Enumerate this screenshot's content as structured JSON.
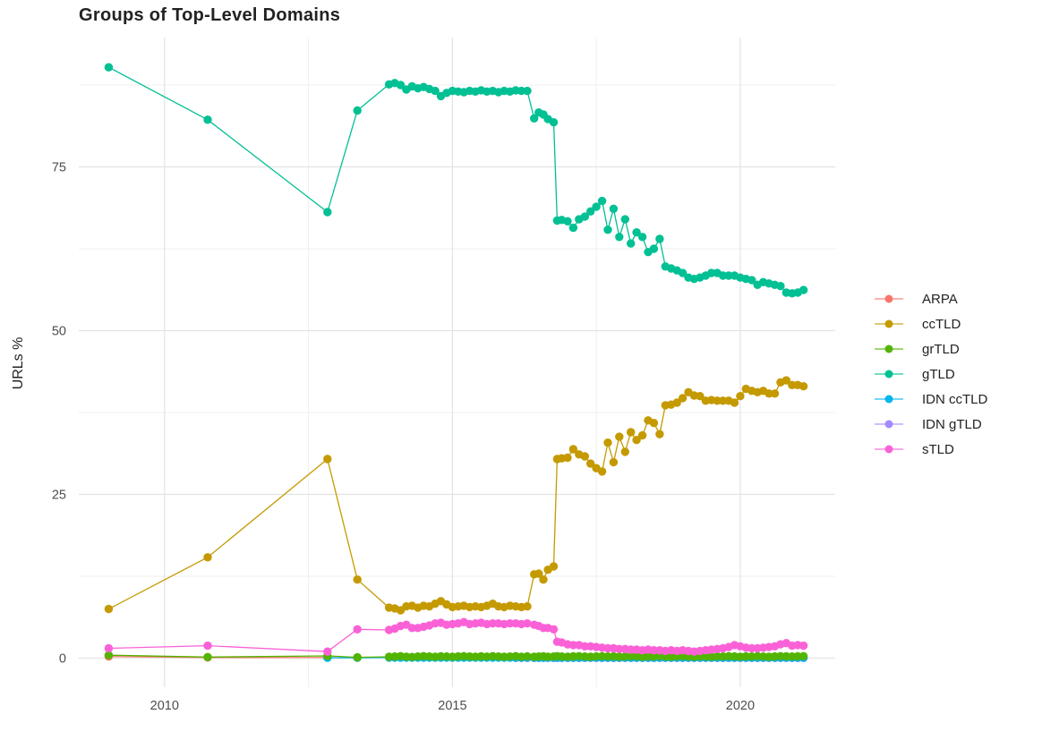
{
  "title": "Groups of Top-Level Domains",
  "y_axis": {
    "label": "URLs %"
  },
  "chart_data": {
    "type": "line",
    "title": "Groups of Top-Level Domains",
    "xlabel": "",
    "ylabel": "URLs %",
    "xlim": [
      2008.51,
      2021.65
    ],
    "ylim": [
      -4.44,
      94.74
    ],
    "x_ticks": [
      2010,
      2015,
      2020
    ],
    "x_tick_labels": [
      "2010",
      "2015",
      "2020"
    ],
    "y_ticks": [
      0,
      25,
      50,
      75
    ],
    "y_tick_labels": [
      "0",
      "25",
      "50",
      "75"
    ],
    "x_minor": [
      2012.5,
      2017.5
    ],
    "y_minor": [
      12.5,
      37.5,
      62.5,
      87.5
    ],
    "grid": {
      "major_color": "#e3e3e3",
      "minor_color": "#efefef"
    },
    "legend_position": "right",
    "draw_order": [
      "ARPA",
      "IDN gTLD",
      "IDN ccTLD",
      "gTLD",
      "ccTLD",
      "grTLD",
      "sTLD"
    ],
    "dense_x": [
      2013.9,
      2014.0,
      2014.1,
      2014.2,
      2014.3,
      2014.4,
      2014.5,
      2014.6,
      2014.7,
      2014.8,
      2014.9,
      2015.0,
      2015.1,
      2015.2,
      2015.3,
      2015.4,
      2015.5,
      2015.6,
      2015.7,
      2015.8,
      2015.9,
      2016.0,
      2016.1,
      2016.2,
      2016.3,
      2016.42,
      2016.5,
      2016.58,
      2016.66,
      2016.76,
      2016.82,
      2016.9,
      2017.0,
      2017.1,
      2017.2,
      2017.3,
      2017.4,
      2017.5,
      2017.6,
      2017.7,
      2017.8,
      2017.9,
      2018.0,
      2018.1,
      2018.2,
      2018.3,
      2018.4,
      2018.5,
      2018.6,
      2018.7,
      2018.8,
      2018.9,
      2019.0,
      2019.1,
      2019.2,
      2019.3,
      2019.4,
      2019.5,
      2019.6,
      2019.7,
      2019.8,
      2019.9,
      2020.0,
      2020.1,
      2020.2,
      2020.3,
      2020.4,
      2020.5,
      2020.6,
      2020.7,
      2020.8,
      2020.9,
      2021.0,
      2021.1
    ],
    "series": [
      {
        "name": "ARPA",
        "color": "#F8766D",
        "points": [
          [
            2009.03,
            0.25
          ],
          [
            2010.75,
            0.1
          ],
          [
            2012.83,
            0.08
          ],
          [
            2013.35,
            0.05
          ]
        ]
      },
      {
        "name": "ccTLD",
        "color": "#C49A00",
        "points": [
          [
            2009.03,
            7.5
          ],
          [
            2010.75,
            15.4
          ],
          [
            2012.83,
            30.4
          ],
          [
            2013.35,
            12.0
          ]
        ],
        "dense_values": [
          7.7,
          7.6,
          7.3,
          7.9,
          8.0,
          7.7,
          8.0,
          7.9,
          8.3,
          8.7,
          8.2,
          7.8,
          7.9,
          8.0,
          7.8,
          7.9,
          7.8,
          8.0,
          8.3,
          7.9,
          7.8,
          8.0,
          7.9,
          7.8,
          7.9,
          12.8,
          12.9,
          12.0,
          13.5,
          14.0,
          30.4,
          30.5,
          30.6,
          31.9,
          31.1,
          30.8,
          29.7,
          29.0,
          28.5,
          32.9,
          29.9,
          33.8,
          31.5,
          34.5,
          33.3,
          34.0,
          36.3,
          35.9,
          34.2,
          38.6,
          38.7,
          39.0,
          39.7,
          40.6,
          40.1,
          40.0,
          39.3,
          39.4,
          39.3,
          39.3,
          39.3,
          39.0,
          40.0,
          41.1,
          40.8,
          40.6,
          40.8,
          40.4,
          40.4,
          42.1,
          42.4,
          41.7,
          41.7,
          41.5
        ]
      },
      {
        "name": "grTLD",
        "color": "#53B400",
        "points": [
          [
            2009.03,
            0.45
          ],
          [
            2010.75,
            0.16
          ],
          [
            2012.83,
            0.34
          ],
          [
            2013.35,
            0.12
          ]
        ],
        "dense_values": [
          0.2,
          0.25,
          0.3,
          0.22,
          0.18,
          0.25,
          0.3,
          0.25,
          0.2,
          0.28,
          0.24,
          0.2,
          0.26,
          0.3,
          0.24,
          0.2,
          0.27,
          0.23,
          0.3,
          0.25,
          0.2,
          0.25,
          0.3,
          0.22,
          0.26,
          0.2,
          0.25,
          0.28,
          0.22,
          0.25,
          0.3,
          0.25,
          0.22,
          0.27,
          0.3,
          0.25,
          0.2,
          0.26,
          0.3,
          0.24,
          0.28,
          0.22,
          0.25,
          0.3,
          0.26,
          0.2,
          0.27,
          0.24,
          0.3,
          0.25,
          0.2,
          0.26,
          0.3,
          0.24,
          0.2,
          0.27,
          0.25,
          0.22,
          0.28,
          0.25,
          0.3,
          0.26,
          0.22,
          0.27,
          0.25,
          0.3,
          0.24,
          0.2,
          0.26,
          0.3,
          0.27,
          0.24,
          0.28,
          0.3
        ]
      },
      {
        "name": "gTLD",
        "color": "#00C094",
        "points": [
          [
            2009.03,
            90.2
          ],
          [
            2010.75,
            82.2
          ],
          [
            2012.83,
            68.1
          ],
          [
            2013.35,
            83.6
          ]
        ],
        "dense_values": [
          87.6,
          87.8,
          87.5,
          86.8,
          87.3,
          87.0,
          87.2,
          86.9,
          86.6,
          85.8,
          86.3,
          86.6,
          86.5,
          86.4,
          86.6,
          86.5,
          86.7,
          86.5,
          86.6,
          86.4,
          86.6,
          86.5,
          86.7,
          86.6,
          86.6,
          82.4,
          83.3,
          83.0,
          82.3,
          81.8,
          66.8,
          66.9,
          66.7,
          65.7,
          67.0,
          67.4,
          68.2,
          68.9,
          69.8,
          65.4,
          68.6,
          64.3,
          67.0,
          63.3,
          65.0,
          64.3,
          62.0,
          62.5,
          64.0,
          59.8,
          59.5,
          59.2,
          58.8,
          58.1,
          57.9,
          58.1,
          58.4,
          58.8,
          58.8,
          58.4,
          58.4,
          58.4,
          58.1,
          57.9,
          57.7,
          57.0,
          57.4,
          57.2,
          57.0,
          56.8,
          55.8,
          55.7,
          55.8,
          56.2
        ]
      },
      {
        "name": "IDN ccTLD",
        "color": "#00B6EB",
        "points": [
          [
            2012.83,
            0.06
          ],
          [
            2013.35,
            0.06
          ]
        ],
        "dense_values": [
          0.08,
          0.08,
          0.08,
          0.08,
          0.08,
          0.08,
          0.08,
          0.08,
          0.08,
          0.08,
          0.08,
          0.08,
          0.08,
          0.08,
          0.08,
          0.08,
          0.08,
          0.08,
          0.08,
          0.08,
          0.08,
          0.08,
          0.08,
          0.08,
          0.08,
          0.08,
          0.08,
          0.08,
          0.08,
          0.08,
          0.08,
          0.08,
          0.08,
          0.08,
          0.08,
          0.08,
          0.08,
          0.08,
          0.08,
          0.08,
          0.08,
          0.08,
          0.08,
          0.08,
          0.08,
          0.08,
          0.08,
          0.08,
          0.08,
          0.08,
          0.08,
          0.08,
          0.08,
          0.08,
          0.08,
          0.08,
          0.08,
          0.08,
          0.08,
          0.08,
          0.08,
          0.08,
          0.08,
          0.08,
          0.08,
          0.08,
          0.08,
          0.08,
          0.08,
          0.08,
          0.08,
          0.08,
          0.08,
          0.08
        ]
      },
      {
        "name": "IDN gTLD",
        "color": "#A58AFF",
        "points": [],
        "dense_start": 22,
        "dense_values": [
          0.03,
          0.03,
          0.03,
          0.03,
          0.03,
          0.03,
          0.03,
          0.03,
          0.03,
          0.03,
          0.03,
          0.03,
          0.03,
          0.03,
          0.03,
          0.03,
          0.03,
          0.03,
          0.03,
          0.03,
          0.03,
          0.03,
          0.03,
          0.03,
          0.03,
          0.03,
          0.03,
          0.03,
          0.03,
          0.03,
          0.03,
          0.03,
          0.03,
          0.03,
          0.03,
          0.03,
          0.03,
          0.03,
          0.03,
          0.03,
          0.03,
          0.03,
          0.03,
          0.03,
          0.03,
          0.03,
          0.03,
          0.03,
          0.03,
          0.03,
          0.03,
          0.03
        ]
      },
      {
        "name": "sTLD",
        "color": "#FB61D7",
        "points": [
          [
            2009.03,
            1.5
          ],
          [
            2010.75,
            1.9
          ],
          [
            2012.83,
            1.0
          ],
          [
            2013.35,
            4.4
          ]
        ],
        "dense_values": [
          4.3,
          4.5,
          4.9,
          5.1,
          4.6,
          4.6,
          4.8,
          5.0,
          5.3,
          5.4,
          5.1,
          5.2,
          5.3,
          5.5,
          5.2,
          5.3,
          5.4,
          5.2,
          5.3,
          5.3,
          5.2,
          5.3,
          5.3,
          5.2,
          5.3,
          5.1,
          4.9,
          4.6,
          4.6,
          4.4,
          2.5,
          2.4,
          2.1,
          2.0,
          2.0,
          1.8,
          1.8,
          1.7,
          1.6,
          1.5,
          1.5,
          1.4,
          1.4,
          1.3,
          1.3,
          1.2,
          1.3,
          1.2,
          1.2,
          1.1,
          1.2,
          1.1,
          1.2,
          1.1,
          1.0,
          1.1,
          1.2,
          1.3,
          1.4,
          1.5,
          1.7,
          2.0,
          1.8,
          1.6,
          1.5,
          1.5,
          1.6,
          1.7,
          1.8,
          2.1,
          2.3,
          1.9,
          2.0,
          1.9
        ]
      }
    ]
  }
}
